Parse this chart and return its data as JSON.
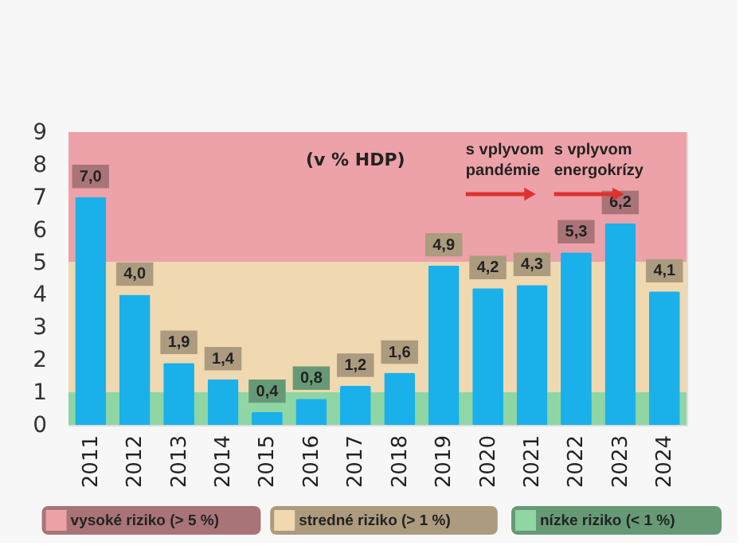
{
  "chart_data": {
    "type": "bar",
    "categories": [
      "2011",
      "2012",
      "2013",
      "2014",
      "2015",
      "2016",
      "2017",
      "2018",
      "2019",
      "2020",
      "2021",
      "2022",
      "2023",
      "2024"
    ],
    "values": [
      7.0,
      4.0,
      1.9,
      1.4,
      0.4,
      0.8,
      1.2,
      1.6,
      4.9,
      4.2,
      4.3,
      5.3,
      6.2,
      4.1
    ],
    "value_labels": [
      "7,0",
      "4,0",
      "1,9",
      "1,4",
      "0,4",
      "0,8",
      "1,2",
      "1,6",
      "4,9",
      "4,2",
      "4,3",
      "5,3",
      "6,2",
      "4,1"
    ],
    "color": "#1ab0ea",
    "ylim": [
      0,
      9
    ],
    "yticks": [
      0,
      1,
      2,
      3,
      4,
      5,
      6,
      7,
      8,
      9
    ],
    "grid": false,
    "legend": "bottom",
    "bands": [
      {
        "axis": "y",
        "from": 5,
        "to": 9,
        "label": "vysoké riziko (> 5 %)",
        "color": "#eca2a8"
      },
      {
        "axis": "y",
        "from": 1,
        "to": 5,
        "label": "stredné riziko (> 1 %)",
        "color": "#f0d8b0"
      },
      {
        "axis": "y",
        "from": 0,
        "to": 1,
        "label": "nízke riziko (< 1 %)",
        "color": "#8fd6a4"
      }
    ],
    "annotations": [
      "(v % HDP)",
      "s vplyvom\npandémie",
      "s vplyvom\nenergokrízy"
    ]
  }
}
